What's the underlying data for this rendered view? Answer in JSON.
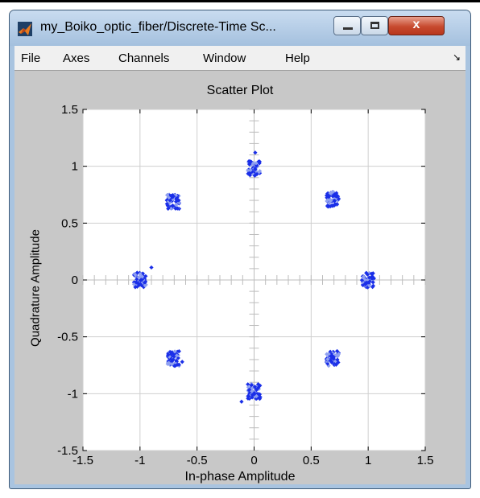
{
  "window": {
    "title": "my_Boiko_optic_fiber/Discrete-Time Sc...",
    "app_icon": "matlab-logo-icon",
    "controls": [
      "minimize-icon",
      "maximize-icon",
      "close-icon"
    ],
    "close_glyph": "x"
  },
  "menu": {
    "items": [
      "File",
      "Axes",
      "Channels",
      "Window",
      "Help"
    ],
    "dock_glyph": "↘"
  },
  "chart_data": {
    "type": "scatter",
    "title": "Scatter Plot",
    "xlabel": "In-phase Amplitude",
    "ylabel": "Quadrature Amplitude",
    "xlim": [
      -1.5,
      1.5
    ],
    "ylim": [
      -1.5,
      1.5
    ],
    "xticks": [
      "-1.5",
      "-1",
      "-0.5",
      "0",
      "0.5",
      "1",
      "1.5"
    ],
    "yticks": [
      "1.5",
      "1",
      "0.5",
      "0",
      "-0.5",
      "-1",
      "-1.5"
    ],
    "grid": true,
    "marker_color": "#1a2fe8",
    "marker_color_light": "#8fa0f0",
    "background": "#ffffff",
    "clusters": [
      {
        "x": 0.0,
        "y": 0.98
      },
      {
        "x": 0.69,
        "y": 0.71
      },
      {
        "x": 1.0,
        "y": 0.0
      },
      {
        "x": 0.69,
        "y": -0.69
      },
      {
        "x": 0.0,
        "y": -0.98
      },
      {
        "x": -0.71,
        "y": -0.69
      },
      {
        "x": -1.0,
        "y": 0.0
      },
      {
        "x": -0.71,
        "y": 0.69
      }
    ],
    "outliers": [
      {
        "x": 0.01,
        "y": 1.12
      },
      {
        "x": -0.11,
        "y": -1.07
      },
      {
        "x": -0.9,
        "y": 0.11
      },
      {
        "x": -0.63,
        "y": -0.72
      }
    ]
  }
}
